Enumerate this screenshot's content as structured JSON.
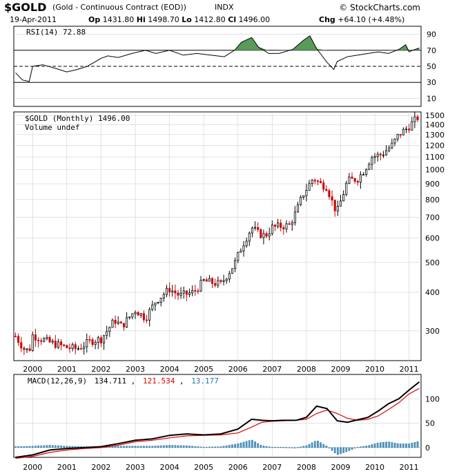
{
  "header": {
    "symbol": "$GOLD",
    "description": "(Gold - Continuous Contract (EOD))",
    "index": "INDX",
    "brand": "© StockCharts.com",
    "date": "19-Apr-2011",
    "open_label": "Op",
    "open": "1431.80",
    "high_label": "Hi",
    "high": "1498.70",
    "low_label": "Lo",
    "low": "1412.80",
    "close_label": "Cl",
    "close": "1496.00",
    "change_label": "Chg",
    "change": "+64.10 (+4.48%)"
  },
  "chart_data": [
    {
      "type": "line",
      "panel": "rsi",
      "legend": "RSI(14) 72.88",
      "yticks": [
        10,
        30,
        50,
        70,
        90
      ],
      "ylim": [
        0,
        100
      ],
      "reference_lines": [
        30,
        50,
        70
      ],
      "x": [
        1999.5,
        1999.7,
        1999.9,
        2000.0,
        2000.3,
        2000.7,
        2001.0,
        2001.3,
        2001.6,
        2002.0,
        2002.2,
        2002.5,
        2002.9,
        2003.3,
        2003.6,
        2004.0,
        2004.4,
        2004.8,
        2005.2,
        2005.6,
        2005.9,
        2006.1,
        2006.4,
        2006.6,
        2006.9,
        2007.2,
        2007.6,
        2007.9,
        2008.1,
        2008.3,
        2008.6,
        2008.8,
        2008.9,
        2009.2,
        2009.5,
        2009.8,
        2010.1,
        2010.4,
        2010.7,
        2010.9,
        2011.0,
        2011.1,
        2011.3
      ],
      "values": [
        42,
        33,
        31,
        50,
        52,
        47,
        43,
        46,
        50,
        60,
        63,
        61,
        66,
        70,
        66,
        70,
        64,
        66,
        64,
        62,
        70,
        80,
        86,
        74,
        66,
        66,
        71,
        82,
        88,
        72,
        55,
        46,
        56,
        62,
        64,
        66,
        68,
        66,
        71,
        77,
        68,
        70,
        72.88
      ]
    },
    {
      "type": "candlestick",
      "panel": "price",
      "legend_symbol": "$GOLD (Monthly) 1496.00",
      "legend_volume": "Volume undef",
      "scale": "log",
      "ylim": [
        240,
        1540
      ],
      "yticks": [
        300,
        400,
        500,
        600,
        700,
        800,
        900,
        1000,
        1100,
        1200,
        1300,
        1400,
        1500
      ],
      "xticks": [
        "2000",
        "2001",
        "2002",
        "2003",
        "2004",
        "2005",
        "2006",
        "2007",
        "2008",
        "2009",
        "2010",
        "2011"
      ],
      "xtick_positions": [
        2000,
        2001,
        2002,
        2003,
        2004,
        2005,
        2006,
        2007,
        2008,
        2009,
        2010,
        2011
      ],
      "xlim": [
        1999.45,
        2011.35
      ],
      "anchor_x": [
        1999.5,
        1999.75,
        1999.9,
        2000.0,
        2000.5,
        2001.0,
        2001.3,
        2001.7,
        2002.0,
        2002.4,
        2002.6,
        2003.0,
        2003.3,
        2003.6,
        2004.0,
        2004.3,
        2004.7,
        2005.0,
        2005.5,
        2005.9,
        2006.1,
        2006.4,
        2006.6,
        2006.8,
        2007.0,
        2007.5,
        2007.7,
        2007.9,
        2008.2,
        2008.4,
        2008.6,
        2008.8,
        2008.9,
        2009.2,
        2009.5,
        2009.7,
        2009.9,
        2010.2,
        2010.5,
        2010.7,
        2010.9,
        2011.1,
        2011.3
      ],
      "anchor_close": [
        288,
        262,
        258,
        290,
        275,
        265,
        262,
        278,
        282,
        325,
        310,
        350,
        330,
        375,
        410,
        390,
        400,
        435,
        425,
        495,
        560,
        650,
        620,
        610,
        650,
        660,
        730,
        830,
        940,
        900,
        880,
        760,
        730,
        920,
        935,
        1000,
        1100,
        1120,
        1200,
        1300,
        1350,
        1420,
        1496
      ],
      "wick_pct": 5,
      "up_color": "#000000",
      "down_color": "#cc0000"
    },
    {
      "type": "line",
      "panel": "macd",
      "legend_name": "MACD(12,26,9)",
      "legend_values": [
        "134.711",
        "121.534",
        "13.177"
      ],
      "ylim": [
        -20,
        150
      ],
      "yticks": [
        0,
        50,
        100
      ],
      "xticks": [
        "2000",
        "2001",
        "2002",
        "2003",
        "2004",
        "2005",
        "2006",
        "2007",
        "2008",
        "2009",
        "2010",
        "2011"
      ],
      "x": [
        1999.5,
        2000.0,
        2000.5,
        2001.0,
        2001.5,
        2002.0,
        2002.5,
        2003.0,
        2003.5,
        2004.0,
        2004.5,
        2005.0,
        2005.5,
        2006.0,
        2006.4,
        2006.7,
        2007.0,
        2007.3,
        2007.7,
        2008.0,
        2008.3,
        2008.6,
        2008.9,
        2009.2,
        2009.5,
        2009.8,
        2010.1,
        2010.4,
        2010.7,
        2011.0,
        2011.3
      ],
      "series": [
        {
          "name": "MACD",
          "color": "#000000",
          "values": [
            -20,
            -15,
            -5,
            -2,
            0,
            2,
            8,
            15,
            18,
            25,
            28,
            26,
            28,
            38,
            58,
            56,
            55,
            56,
            56,
            62,
            85,
            80,
            55,
            52,
            57,
            62,
            75,
            90,
            100,
            118,
            134.711
          ]
        },
        {
          "name": "Signal",
          "color": "#dd0000",
          "values": [
            -22,
            -18,
            -10,
            -5,
            -2,
            0,
            5,
            12,
            15,
            20,
            24,
            25,
            26,
            30,
            42,
            52,
            54,
            55,
            56,
            58,
            70,
            77,
            70,
            60,
            56,
            58,
            65,
            78,
            92,
            110,
            121.534
          ]
        },
        {
          "name": "Histogram",
          "color": "#3399cc",
          "values": [
            2,
            3,
            5,
            3,
            2,
            2,
            3,
            3,
            3,
            5,
            4,
            1,
            2,
            8,
            16,
            4,
            1,
            1,
            0,
            4,
            15,
            3,
            -15,
            -8,
            1,
            4,
            10,
            12,
            8,
            8,
            13.177
          ]
        }
      ]
    }
  ]
}
